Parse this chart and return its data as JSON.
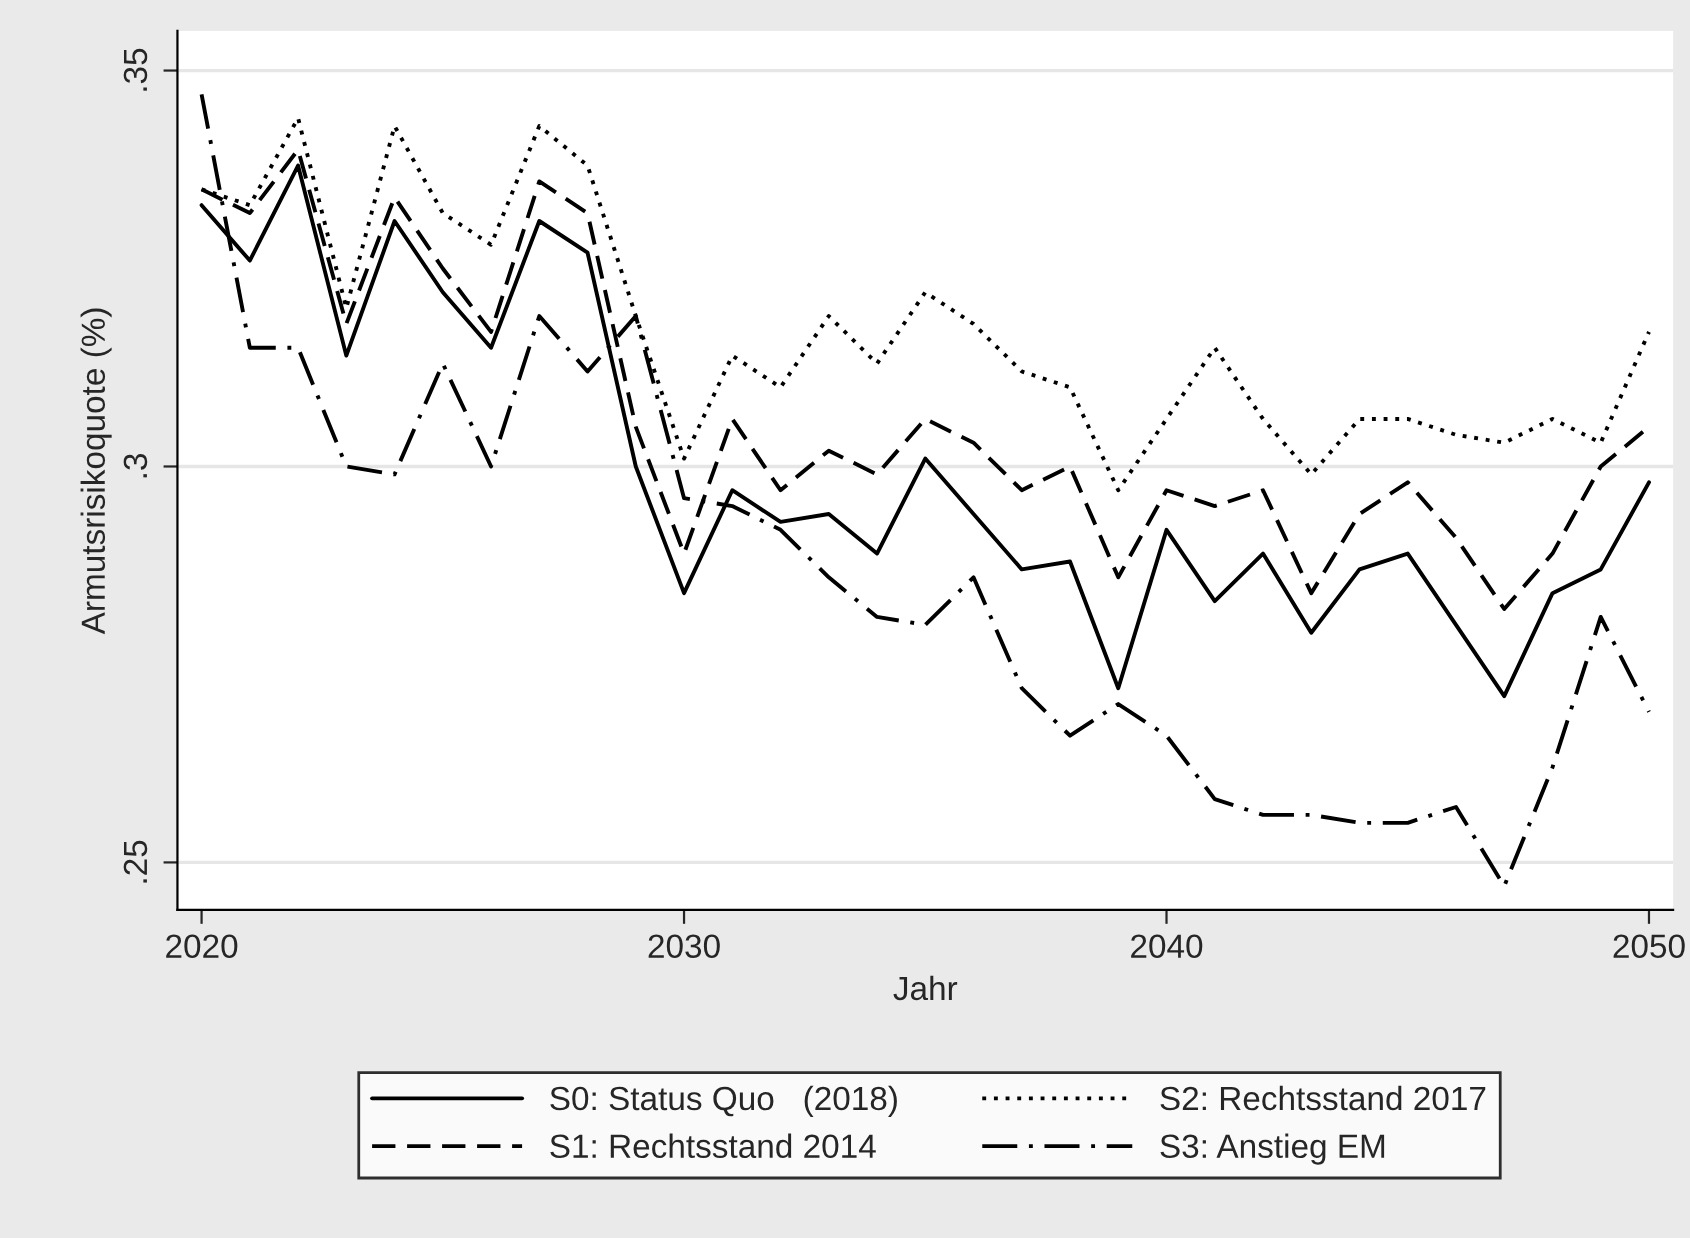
{
  "chart_data": {
    "type": "line",
    "xlabel": "Jahr",
    "ylabel": "Armutsrisikoquote (%)",
    "x": [
      2020,
      2021,
      2022,
      2023,
      2024,
      2025,
      2026,
      2027,
      2028,
      2029,
      2030,
      2031,
      2032,
      2033,
      2034,
      2035,
      2036,
      2037,
      2038,
      2039,
      2040,
      2041,
      2042,
      2043,
      2044,
      2045,
      2046,
      2047,
      2048,
      2049,
      2050
    ],
    "series": [
      {
        "name": "S0: Status Quo   (2018)",
        "color": "#000000",
        "line_style": "solid",
        "values": [
          0.333,
          0.326,
          0.338,
          0.314,
          0.331,
          0.322,
          0.315,
          0.331,
          0.327,
          0.3,
          0.284,
          0.297,
          0.293,
          0.294,
          0.289,
          0.301,
          0.294,
          0.287,
          0.288,
          0.272,
          0.292,
          0.283,
          0.289,
          0.279,
          0.287,
          0.289,
          0.28,
          0.271,
          0.284,
          0.287,
          0.298
        ]
      },
      {
        "name": "S1: Rechtsstand 2014",
        "color": "#000000",
        "line_style": "dashed",
        "values": [
          0.335,
          0.332,
          0.34,
          0.318,
          0.334,
          0.325,
          0.317,
          0.336,
          0.332,
          0.305,
          0.289,
          0.306,
          0.297,
          0.302,
          0.299,
          0.306,
          0.303,
          0.297,
          0.3,
          0.286,
          0.297,
          0.295,
          0.297,
          0.284,
          0.294,
          0.298,
          0.291,
          0.282,
          0.289,
          0.3,
          0.305
        ]
      },
      {
        "name": "S2: Rechtsstand 2017",
        "color": "#000000",
        "line_style": "dotted",
        "values": [
          0.335,
          0.333,
          0.344,
          0.32,
          0.343,
          0.332,
          0.328,
          0.343,
          0.338,
          0.319,
          0.301,
          0.314,
          0.31,
          0.319,
          0.313,
          0.322,
          0.318,
          0.312,
          0.31,
          0.297,
          0.306,
          0.315,
          0.306,
          0.299,
          0.306,
          0.306,
          0.304,
          0.303,
          0.306,
          0.303,
          0.317
        ]
      },
      {
        "name": "S3: Anstieg EM",
        "color": "#000000",
        "line_style": "dashdot",
        "values": [
          0.347,
          0.315,
          0.315,
          0.3,
          0.299,
          0.313,
          0.3,
          0.319,
          0.312,
          0.319,
          0.296,
          0.295,
          0.292,
          0.286,
          0.281,
          0.28,
          0.286,
          0.272,
          0.266,
          0.27,
          0.266,
          0.258,
          0.256,
          0.256,
          0.255,
          0.255,
          0.257,
          0.247,
          0.262,
          0.281,
          0.269
        ]
      }
    ],
    "xlim": [
      2019.5,
      2050.5
    ],
    "xticks": [
      2020,
      2030,
      2040,
      2050
    ],
    "ylim": [
      0.244,
      0.355
    ],
    "yticks": [
      {
        "value": 0.25,
        "label": ".25"
      },
      {
        "value": 0.3,
        "label": ".3"
      },
      {
        "value": 0.35,
        "label": ".35"
      }
    ],
    "grid": "y",
    "legend": "bottom",
    "marker": "none"
  }
}
